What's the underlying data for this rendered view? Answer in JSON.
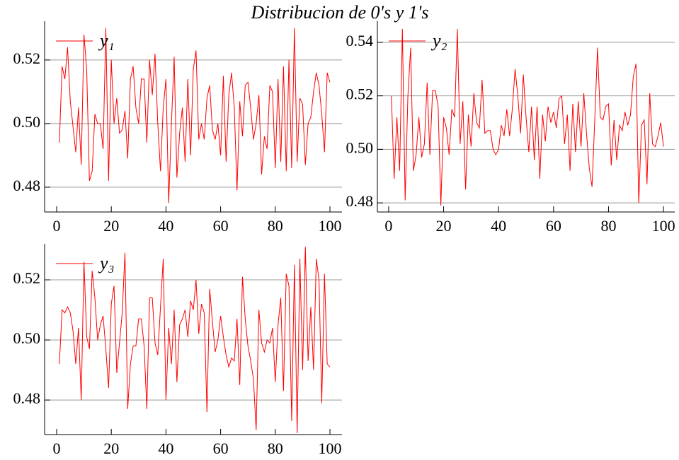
{
  "title": "Distribucion de 0's y 1's",
  "chart_data": [
    {
      "type": "line",
      "xlim": [
        -4.4,
        104.4
      ],
      "ylim": [
        0.4722,
        0.5322
      ],
      "xticks": [
        0,
        20,
        40,
        60,
        80,
        100
      ],
      "yticks": [
        {
          "value": 0.48,
          "label": "0.48"
        },
        {
          "value": 0.5,
          "label": "0.50"
        },
        {
          "value": 0.52,
          "label": "0.52"
        }
      ],
      "grid": true,
      "legend": "upper left",
      "x": [
        1,
        2,
        3,
        4,
        5,
        6,
        7,
        8,
        9,
        10,
        11,
        12,
        13,
        14,
        15,
        16,
        17,
        18,
        19,
        20,
        21,
        22,
        23,
        24,
        25,
        26,
        27,
        28,
        29,
        30,
        31,
        32,
        33,
        34,
        35,
        36,
        37,
        38,
        39,
        40,
        41,
        42,
        43,
        44,
        45,
        46,
        47,
        48,
        49,
        50,
        51,
        52,
        53,
        54,
        55,
        56,
        57,
        58,
        59,
        60,
        61,
        62,
        63,
        64,
        65,
        66,
        67,
        68,
        69,
        70,
        71,
        72,
        73,
        74,
        75,
        76,
        77,
        78,
        79,
        80,
        81,
        82,
        83,
        84,
        85,
        86,
        87,
        88,
        89,
        90,
        91,
        92,
        93,
        94,
        95,
        96,
        97,
        98,
        99,
        100
      ],
      "series": [
        {
          "name": "y₁",
          "color": "#ff0000",
          "values": [
            0.494,
            0.518,
            0.514,
            0.524,
            0.507,
            0.499,
            0.491,
            0.505,
            0.487,
            0.528,
            0.517,
            0.482,
            0.485,
            0.503,
            0.5,
            0.5,
            0.492,
            0.53,
            0.482,
            0.52,
            0.5,
            0.508,
            0.497,
            0.498,
            0.504,
            0.489,
            0.514,
            0.518,
            0.505,
            0.5,
            0.514,
            0.514,
            0.494,
            0.52,
            0.509,
            0.522,
            0.5,
            0.485,
            0.505,
            0.514,
            0.475,
            0.5,
            0.521,
            0.483,
            0.497,
            0.505,
            0.488,
            0.514,
            0.49,
            0.517,
            0.523,
            0.495,
            0.5,
            0.495,
            0.508,
            0.512,
            0.498,
            0.495,
            0.5,
            0.49,
            0.515,
            0.488,
            0.509,
            0.516,
            0.505,
            0.479,
            0.507,
            0.496,
            0.512,
            0.513,
            0.505,
            0.495,
            0.5,
            0.509,
            0.484,
            0.496,
            0.492,
            0.512,
            0.51,
            0.486,
            0.514,
            0.488,
            0.518,
            0.485,
            0.52,
            0.486,
            0.53,
            0.488,
            0.508,
            0.506,
            0.487,
            0.5,
            0.502,
            0.51,
            0.516,
            0.512,
            0.503,
            0.491,
            0.516,
            0.513
          ]
        }
      ]
    },
    {
      "type": "line",
      "xlim": [
        -4.1,
        104.1
      ],
      "ylim": [
        0.4766,
        0.5479
      ],
      "xticks": [
        0,
        20,
        40,
        60,
        80,
        100
      ],
      "yticks": [
        {
          "value": 0.48,
          "label": "0.48"
        },
        {
          "value": 0.5,
          "label": "0.50"
        },
        {
          "value": 0.52,
          "label": "0.52"
        },
        {
          "value": 0.54,
          "label": "0.54"
        }
      ],
      "grid": true,
      "legend": "upper left",
      "x": [
        1,
        2,
        3,
        4,
        5,
        6,
        7,
        8,
        9,
        10,
        11,
        12,
        13,
        14,
        15,
        16,
        17,
        18,
        19,
        20,
        21,
        22,
        23,
        24,
        25,
        26,
        27,
        28,
        29,
        30,
        31,
        32,
        33,
        34,
        35,
        36,
        37,
        38,
        39,
        40,
        41,
        42,
        43,
        44,
        45,
        46,
        47,
        48,
        49,
        50,
        51,
        52,
        53,
        54,
        55,
        56,
        57,
        58,
        59,
        60,
        61,
        62,
        63,
        64,
        65,
        66,
        67,
        68,
        69,
        70,
        71,
        72,
        73,
        74,
        75,
        76,
        77,
        78,
        79,
        80,
        81,
        82,
        83,
        84,
        85,
        86,
        87,
        88,
        89,
        90,
        91,
        92,
        93,
        94,
        95,
        96,
        97,
        98,
        99,
        100
      ],
      "series": [
        {
          "name": "y₂",
          "color": "#ff0000",
          "values": [
            0.52,
            0.489,
            0.512,
            0.492,
            0.545,
            0.481,
            0.52,
            0.538,
            0.492,
            0.498,
            0.512,
            0.497,
            0.502,
            0.525,
            0.498,
            0.522,
            0.522,
            0.516,
            0.479,
            0.512,
            0.508,
            0.498,
            0.515,
            0.512,
            0.545,
            0.502,
            0.518,
            0.485,
            0.513,
            0.501,
            0.521,
            0.51,
            0.508,
            0.526,
            0.506,
            0.507,
            0.507,
            0.5,
            0.498,
            0.5,
            0.509,
            0.505,
            0.515,
            0.505,
            0.515,
            0.53,
            0.52,
            0.506,
            0.528,
            0.512,
            0.499,
            0.516,
            0.496,
            0.516,
            0.489,
            0.513,
            0.503,
            0.516,
            0.51,
            0.514,
            0.508,
            0.519,
            0.52,
            0.502,
            0.513,
            0.492,
            0.517,
            0.499,
            0.518,
            0.501,
            0.521,
            0.506,
            0.493,
            0.486,
            0.511,
            0.538,
            0.512,
            0.511,
            0.516,
            0.517,
            0.494,
            0.511,
            0.496,
            0.509,
            0.507,
            0.514,
            0.509,
            0.513,
            0.527,
            0.532,
            0.48,
            0.509,
            0.511,
            0.487,
            0.521,
            0.502,
            0.501,
            0.505,
            0.51,
            0.501
          ]
        }
      ]
    },
    {
      "type": "line",
      "xlim": [
        -4.4,
        104.4
      ],
      "ylim": [
        0.4685,
        0.532
      ],
      "xticks": [
        0,
        20,
        40,
        60,
        80,
        100
      ],
      "yticks": [
        {
          "value": 0.48,
          "label": "0.48"
        },
        {
          "value": 0.5,
          "label": "0.50"
        },
        {
          "value": 0.52,
          "label": "0.52"
        }
      ],
      "grid": true,
      "legend": "upper left",
      "x": [
        1,
        2,
        3,
        4,
        5,
        6,
        7,
        8,
        9,
        10,
        11,
        12,
        13,
        14,
        15,
        16,
        17,
        18,
        19,
        20,
        21,
        22,
        23,
        24,
        25,
        26,
        27,
        28,
        29,
        30,
        31,
        32,
        33,
        34,
        35,
        36,
        37,
        38,
        39,
        40,
        41,
        42,
        43,
        44,
        45,
        46,
        47,
        48,
        49,
        50,
        51,
        52,
        53,
        54,
        55,
        56,
        57,
        58,
        59,
        60,
        61,
        62,
        63,
        64,
        65,
        66,
        67,
        68,
        69,
        70,
        71,
        72,
        73,
        74,
        75,
        76,
        77,
        78,
        79,
        80,
        81,
        82,
        83,
        84,
        85,
        86,
        87,
        88,
        89,
        90,
        91,
        92,
        93,
        94,
        95,
        96,
        97,
        98,
        99,
        100
      ],
      "series": [
        {
          "name": "y₃",
          "color": "#ff0000",
          "values": [
            0.492,
            0.51,
            0.509,
            0.511,
            0.509,
            0.503,
            0.492,
            0.504,
            0.48,
            0.526,
            0.501,
            0.497,
            0.523,
            0.514,
            0.5,
            0.505,
            0.508,
            0.497,
            0.484,
            0.512,
            0.518,
            0.489,
            0.499,
            0.509,
            0.529,
            0.477,
            0.492,
            0.498,
            0.498,
            0.507,
            0.507,
            0.498,
            0.477,
            0.514,
            0.514,
            0.499,
            0.495,
            0.511,
            0.527,
            0.48,
            0.504,
            0.492,
            0.51,
            0.486,
            0.505,
            0.507,
            0.51,
            0.501,
            0.513,
            0.51,
            0.52,
            0.502,
            0.512,
            0.509,
            0.476,
            0.517,
            0.506,
            0.496,
            0.5,
            0.508,
            0.501,
            0.495,
            0.491,
            0.494,
            0.493,
            0.507,
            0.485,
            0.521,
            0.507,
            0.498,
            0.493,
            0.487,
            0.47,
            0.51,
            0.499,
            0.496,
            0.5,
            0.499,
            0.504,
            0.486,
            0.505,
            0.514,
            0.483,
            0.522,
            0.518,
            0.473,
            0.525,
            0.469,
            0.527,
            0.49,
            0.531,
            0.493,
            0.511,
            0.49,
            0.527,
            0.52,
            0.479,
            0.522,
            0.492,
            0.491
          ]
        }
      ]
    }
  ]
}
